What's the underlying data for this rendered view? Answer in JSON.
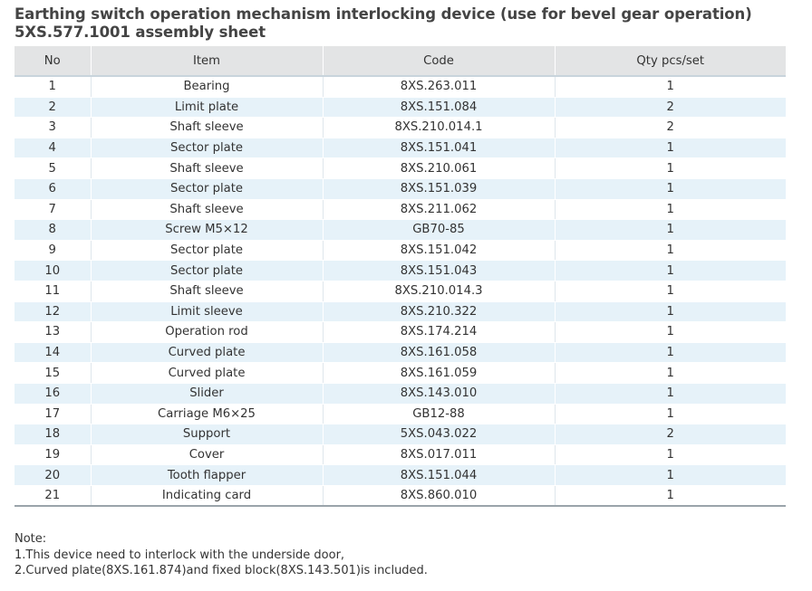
{
  "title": {
    "line1": "Earthing switch operation mechanism interlocking device (use for bevel gear operation)",
    "line2": "5XS.577.1001 assembly sheet"
  },
  "table": {
    "headers": {
      "no": "No",
      "item": "Item",
      "code": "Code",
      "qty": "Qty pcs/set"
    },
    "rows": [
      {
        "no": "1",
        "item": "Bearing",
        "code": "8XS.263.011",
        "qty": "1"
      },
      {
        "no": "2",
        "item": "Limit plate",
        "code": "8XS.151.084",
        "qty": "2"
      },
      {
        "no": "3",
        "item": "Shaft sleeve",
        "code": "8XS.210.014.1",
        "qty": "2"
      },
      {
        "no": "4",
        "item": "Sector plate",
        "code": "8XS.151.041",
        "qty": "1"
      },
      {
        "no": "5",
        "item": "Shaft sleeve",
        "code": "8XS.210.061",
        "qty": "1"
      },
      {
        "no": "6",
        "item": "Sector plate",
        "code": "8XS.151.039",
        "qty": "1"
      },
      {
        "no": "7",
        "item": "Shaft sleeve",
        "code": "8XS.211.062",
        "qty": "1"
      },
      {
        "no": "8",
        "item": "Screw M5×12",
        "code": "GB70-85",
        "qty": "1"
      },
      {
        "no": "9",
        "item": "Sector plate",
        "code": "8XS.151.042",
        "qty": "1"
      },
      {
        "no": "10",
        "item": "Sector plate",
        "code": "8XS.151.043",
        "qty": "1"
      },
      {
        "no": "11",
        "item": "Shaft sleeve",
        "code": "8XS.210.014.3",
        "qty": "1"
      },
      {
        "no": "12",
        "item": "Limit sleeve",
        "code": "8XS.210.322",
        "qty": "1"
      },
      {
        "no": "13",
        "item": "Operation rod",
        "code": "8XS.174.214",
        "qty": "1"
      },
      {
        "no": "14",
        "item": "Curved plate",
        "code": "8XS.161.058",
        "qty": "1"
      },
      {
        "no": "15",
        "item": "Curved plate",
        "code": "8XS.161.059",
        "qty": "1"
      },
      {
        "no": "16",
        "item": "Slider",
        "code": "8XS.143.010",
        "qty": "1"
      },
      {
        "no": "17",
        "item": "Carriage M6×25",
        "code": "GB12-88",
        "qty": "1"
      },
      {
        "no": "18",
        "item": "Support",
        "code": "5XS.043.022",
        "qty": "2"
      },
      {
        "no": "19",
        "item": "Cover",
        "code": "8XS.017.011",
        "qty": "1"
      },
      {
        "no": "20",
        "item": "Tooth flapper",
        "code": "8XS.151.044",
        "qty": "1"
      },
      {
        "no": "21",
        "item": "Indicating card",
        "code": "8XS.860.010",
        "qty": "1"
      }
    ]
  },
  "notes": {
    "heading": "Note:",
    "lines": [
      "1.This device need to interlock with the underside door,",
      "2.Curved plate(8XS.161.874)and fixed block(8XS.143.501)is included."
    ]
  },
  "colors": {
    "header_bg": "#e3e4e5",
    "stripe_bg": "#e6f2f9",
    "text": "#333333",
    "title_text": "#444444"
  }
}
